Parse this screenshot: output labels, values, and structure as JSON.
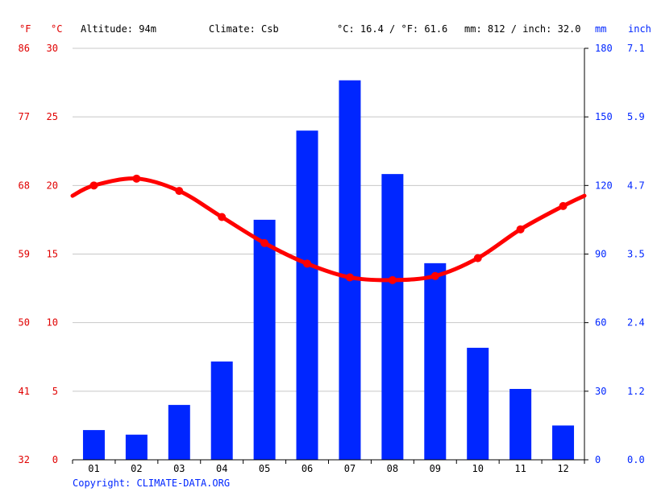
{
  "header": {
    "unit_f": "°F",
    "unit_c": "°C",
    "altitude": "Altitude: 94m",
    "climate": "Climate: Csb",
    "temp_avg": "°C: 16.4 / °F: 61.6",
    "precip_total": "mm: 812 / inch: 32.0",
    "unit_mm": "mm",
    "unit_inch": "inch"
  },
  "footer": {
    "copyright": "Copyright: CLIMATE-DATA.ORG"
  },
  "colors": {
    "temp": "#ff0000",
    "precip": "#0026ff",
    "axis_right": "#0026ff",
    "axis_left": "#e00000",
    "grid": "#c8c8c8"
  },
  "chart_data": {
    "type": "bar",
    "categories": [
      "01",
      "02",
      "03",
      "04",
      "05",
      "06",
      "07",
      "08",
      "09",
      "10",
      "11",
      "12"
    ],
    "series": [
      {
        "type": "bar",
        "axis": "right",
        "unit": "mm",
        "values": [
          13,
          11,
          24,
          43,
          105,
          144,
          166,
          125,
          86,
          49,
          31,
          15
        ]
      },
      {
        "type": "line",
        "axis": "left",
        "unit": "°C",
        "values": [
          20.0,
          20.5,
          19.6,
          17.7,
          15.8,
          14.3,
          13.3,
          13.1,
          13.4,
          14.7,
          16.8,
          18.5
        ]
      }
    ],
    "y_left": {
      "ticks_c": [
        "0",
        "5",
        "10",
        "15",
        "20",
        "25",
        "30"
      ],
      "ticks_f": [
        "32",
        "41",
        "50",
        "59",
        "68",
        "77",
        "86"
      ],
      "range": [
        0,
        30
      ]
    },
    "y_right": {
      "ticks_mm": [
        "0",
        "30",
        "60",
        "90",
        "120",
        "150",
        "180"
      ],
      "ticks_inch": [
        "0.0",
        "1.2",
        "2.4",
        "3.5",
        "4.7",
        "5.9",
        "7.1"
      ],
      "range": [
        0,
        180
      ]
    },
    "grid": true
  }
}
